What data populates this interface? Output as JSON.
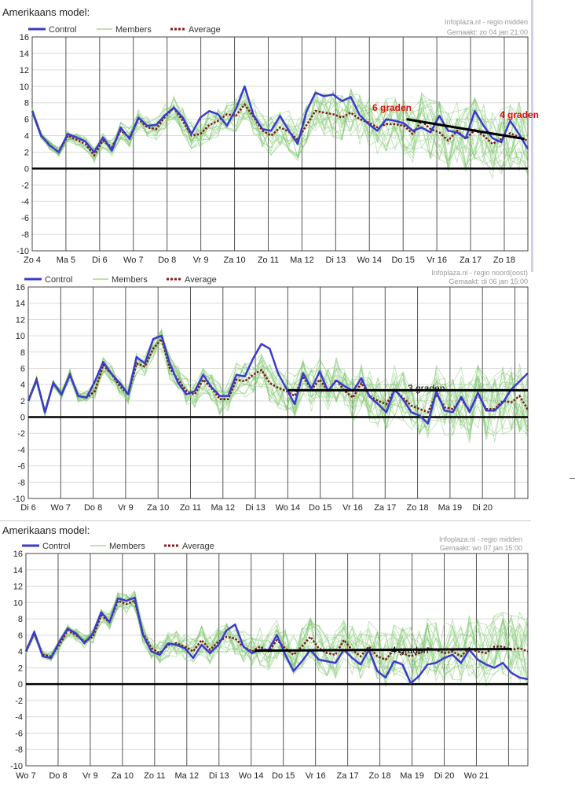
{
  "panels": [
    {
      "model_title": "Amerikaans model:",
      "source_text": "Infoplaza.nl - regio midden",
      "made_text": "Gemaakt: zo 04 jan 21:00",
      "legend": {
        "control": "Control",
        "members": "Members",
        "average": "Average"
      },
      "annotations": [
        {
          "text": "6 graden",
          "color": "#dd1111"
        },
        {
          "text": "4 graden",
          "color": "#dd1111"
        }
      ],
      "chart_data": {
        "type": "line",
        "ylim": [
          -10,
          16
        ],
        "y_ticks": [
          16,
          14,
          12,
          10,
          8,
          6,
          4,
          2,
          0,
          -2,
          -4,
          -6,
          -8,
          -10
        ],
        "x_days": 14.7,
        "day_labels": [
          "Zo 4",
          "Ma 5",
          "Di 6",
          "Wo 7",
          "Do 8",
          "Vr 9",
          "Za 10",
          "Zo 11",
          "Ma 12",
          "Di 13",
          "Wo 14",
          "Do 15",
          "Vr 16",
          "Za 17",
          "Zo 18"
        ],
        "series": [
          {
            "name": "Control",
            "values": [
              7,
              4,
              2.8,
              2,
              4.2,
              3.8,
              3.3,
              2,
              3.8,
              2.2,
              5,
              3.6,
              6.2,
              5.2,
              5.3,
              6.5,
              7.4,
              6.2,
              4.2,
              6.2,
              7,
              6.6,
              5.2,
              7.2,
              10,
              6.5,
              4.8,
              4.6,
              6.4,
              4.6,
              3,
              7,
              9.2,
              8.8,
              9,
              8.2,
              8.7,
              6.5,
              5.4,
              4.6,
              6,
              5.8,
              5.5,
              4.6,
              5,
              4.4,
              6.4,
              4.6,
              4.4,
              3.7,
              7,
              5.2,
              3.7,
              3.2,
              5.8,
              4.2,
              2.4
            ]
          },
          {
            "name": "Average",
            "values": [
              7,
              4,
              2.8,
              2,
              4,
              3.5,
              3,
              1.6,
              3.4,
              2.6,
              4.6,
              3.8,
              6,
              5,
              4.8,
              6.3,
              7.4,
              5.8,
              4,
              4.2,
              5.3,
              5.8,
              6.6,
              6.4,
              7.8,
              6.3,
              4.6,
              4,
              5,
              4.5,
              3.5,
              5.3,
              7,
              6.8,
              6.6,
              6.2,
              6.8,
              6,
              5.6,
              5,
              5.4,
              5.4,
              5.2,
              4.2,
              5.8,
              4.8,
              4.4,
              3.4,
              4.6,
              3.6,
              4.7,
              4,
              3,
              3.6,
              4.3,
              3.8,
              3.4
            ]
          }
        ],
        "trend_line": {
          "start": [
            11.1,
            6
          ],
          "end": [
            14.6,
            3.6
          ]
        }
      }
    },
    {
      "model_title": "",
      "source_text": "Infoplaza.nl - regio noord(oost)",
      "made_text": "Gemaakt: di 06 jan 15:00",
      "legend": {
        "control": "Control",
        "members": "Members",
        "average": "Average"
      },
      "annotations": [
        {
          "text": "3 graden",
          "color": "#000000"
        }
      ],
      "chart_data": {
        "type": "line",
        "ylim": [
          -10,
          16
        ],
        "y_ticks": [
          16,
          14,
          12,
          10,
          8,
          6,
          4,
          2,
          0,
          -2,
          -4,
          -6,
          -8,
          -10
        ],
        "x_days": 15.4,
        "day_labels": [
          "Di 6",
          "Wo 7",
          "Do 8",
          "Vr 9",
          "Za 10",
          "Zo 11",
          "Ma 12",
          "Di 13",
          "Wo 14",
          "Do 15",
          "Vr 16",
          "Za 17",
          "Zo 18",
          "Ma 19",
          "Di 20"
        ],
        "series": [
          {
            "name": "Control",
            "values": [
              2,
              4.6,
              0.6,
              4.2,
              2.8,
              5.2,
              2.6,
              2.4,
              4.4,
              6.8,
              5.3,
              4.2,
              2.8,
              7.4,
              6.6,
              9.6,
              10,
              6.6,
              4.2,
              2.8,
              3.2,
              5.2,
              3.7,
              2.6,
              2.6,
              5.2,
              5,
              7.2,
              9,
              8.4,
              5.4,
              3.5,
              1.6,
              5.4,
              3.5,
              5.6,
              3.2,
              4.5,
              3.8,
              3.2,
              4.8,
              2.5,
              1.6,
              0.6,
              3.4,
              2.2,
              0.6,
              0.2,
              -0.8,
              3.2,
              0.8,
              0.6,
              2.5,
              0.6,
              3,
              0.8,
              0.8,
              1.8,
              3.4,
              4.4,
              5.4
            ]
          },
          {
            "name": "Average",
            "values": [
              2,
              4.6,
              0.6,
              4.2,
              2.8,
              5.2,
              2.6,
              2.4,
              3.2,
              6.4,
              5.3,
              3.8,
              2.8,
              6.6,
              6.2,
              8.4,
              9.6,
              6,
              4.6,
              3.2,
              2.8,
              4.6,
              3.6,
              2.2,
              2.2,
              4.6,
              4.4,
              5.2,
              5.8,
              4.2,
              3.6,
              3.2,
              2.6,
              5,
              3.4,
              4.6,
              3.2,
              4.6,
              3.2,
              2.4,
              4.2,
              2.6,
              2,
              1.6,
              3.3,
              2.4,
              1.4,
              1,
              0.6,
              2.8,
              1.2,
              1,
              2.2,
              0.8,
              2.8,
              1,
              1,
              2,
              1.8,
              2.6,
              0.9
            ]
          }
        ],
        "trend_line": {
          "start": [
            8.0,
            3.3
          ],
          "end": [
            15.4,
            3.3
          ]
        }
      }
    },
    {
      "model_title": "Amerikaans model:",
      "source_text": "Infoplaza.nl - regio midden",
      "made_text": "Gemaakt: wo 07 jan 15:00",
      "legend": {
        "control": "Control",
        "members": "Members",
        "average": "Average"
      },
      "annotations": [
        {
          "text": "4 graden",
          "color": "#000000"
        }
      ],
      "chart_data": {
        "type": "line",
        "ylim": [
          -10,
          16
        ],
        "y_ticks": [
          16,
          14,
          12,
          10,
          8,
          6,
          4,
          2,
          0,
          -2,
          -4,
          -6,
          -8,
          -10
        ],
        "x_days": 15.6,
        "day_labels": [
          "Wo 7",
          "Do 8",
          "Vr 9",
          "Za 10",
          "Zo 11",
          "Ma 12",
          "Di 13",
          "Wo 14",
          "Do 15",
          "Vr 16",
          "Za 17",
          "Zo 18",
          "Ma 19",
          "Di 20",
          "Wo 21"
        ],
        "series": [
          {
            "name": "Control",
            "values": [
              4,
              6.4,
              3.4,
              3.2,
              5.2,
              6.8,
              6.2,
              5,
              6.2,
              8.8,
              7.6,
              10.5,
              10.2,
              10.6,
              6,
              4,
              3.6,
              5,
              4.8,
              4.4,
              3.2,
              4.8,
              3.8,
              4.8,
              6.6,
              7.3,
              4.6,
              3.8,
              4.2,
              4.2,
              6,
              3.6,
              1.6,
              2.8,
              4.2,
              3,
              2.8,
              2.6,
              4.2,
              3.2,
              2.4,
              4.2,
              1.6,
              0.8,
              2.8,
              2.4,
              0.1,
              1,
              2.4,
              2.6,
              3.2,
              3.6,
              2.6,
              4.2,
              3,
              2.4,
              2,
              2.6,
              1.4,
              0.8,
              0.6
            ]
          },
          {
            "name": "Average",
            "values": [
              4,
              6.2,
              3.6,
              3.4,
              4.8,
              6.6,
              6,
              5.2,
              5.8,
              8.4,
              7.6,
              10.2,
              9.8,
              10.2,
              6.2,
              4.4,
              3.8,
              4.8,
              5,
              4.6,
              4,
              5.4,
              4.2,
              5.2,
              5.8,
              5.6,
              4.6,
              4,
              4.6,
              4,
              5.4,
              4.4,
              3.6,
              4.6,
              5.8,
              4.4,
              3.8,
              3.6,
              5.4,
              4.2,
              3.4,
              4.6,
              3.4,
              3,
              4.2,
              3.8,
              3.4,
              3.8,
              4.4,
              4.2,
              3.8,
              4,
              3.4,
              4.4,
              4,
              3.8,
              4.6,
              4.6,
              4.2,
              4.4,
              4
            ]
          }
        ],
        "trend_line": {
          "start": [
            7.1,
            4.1
          ],
          "end": [
            15.1,
            4.3
          ]
        }
      }
    }
  ]
}
